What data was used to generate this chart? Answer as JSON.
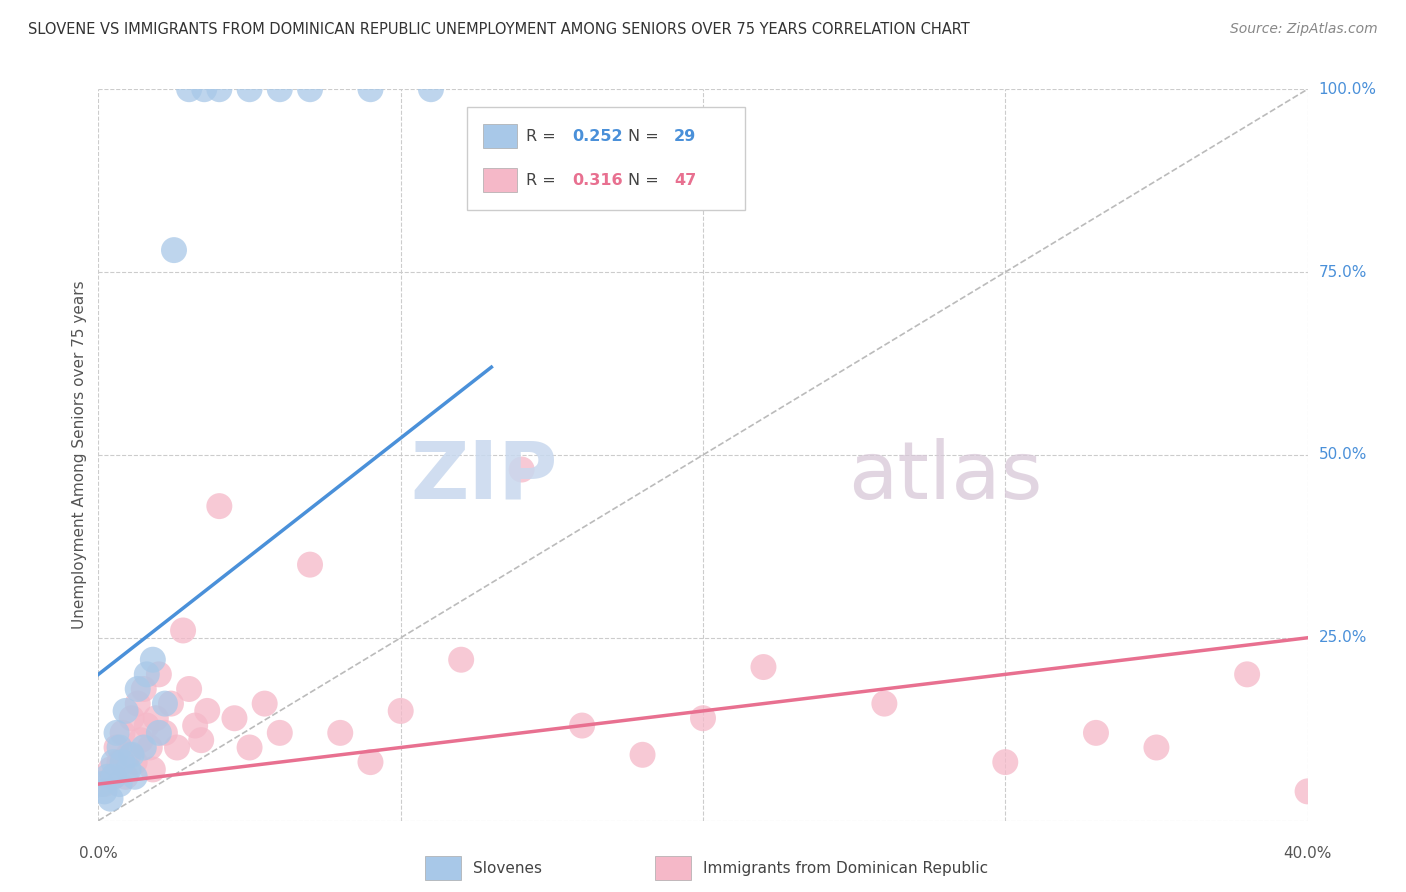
{
  "title": "SLOVENE VS IMMIGRANTS FROM DOMINICAN REPUBLIC UNEMPLOYMENT AMONG SENIORS OVER 75 YEARS CORRELATION CHART",
  "source": "Source: ZipAtlas.com",
  "ylabel": "Unemployment Among Seniors over 75 years",
  "xlim": [
    0.0,
    0.4
  ],
  "ylim": [
    0.0,
    1.0
  ],
  "yticks": [
    0.0,
    0.25,
    0.5,
    0.75,
    1.0
  ],
  "xticks": [
    0.0,
    0.1,
    0.2,
    0.3,
    0.4
  ],
  "blue_color": "#a8c8e8",
  "blue_line_color": "#4a90d9",
  "pink_color": "#f5b8c8",
  "pink_line_color": "#e87090",
  "diag_color": "#bbbbbb",
  "legend_R_blue": "0.252",
  "legend_N_blue": "29",
  "legend_R_pink": "0.316",
  "legend_N_pink": "47",
  "watermark_zip": "ZIP",
  "watermark_atlas": "atlas",
  "slovene_x": [
    0.001,
    0.002,
    0.003,
    0.004,
    0.005,
    0.005,
    0.006,
    0.007,
    0.007,
    0.008,
    0.009,
    0.01,
    0.011,
    0.012,
    0.013,
    0.015,
    0.016,
    0.018,
    0.02,
    0.022,
    0.025,
    0.03,
    0.035,
    0.04,
    0.05,
    0.06,
    0.07,
    0.09,
    0.11
  ],
  "slovene_y": [
    0.05,
    0.04,
    0.06,
    0.03,
    0.08,
    0.06,
    0.12,
    0.05,
    0.1,
    0.08,
    0.15,
    0.07,
    0.09,
    0.06,
    0.18,
    0.1,
    0.2,
    0.22,
    0.12,
    0.16,
    0.78,
    1.0,
    1.0,
    1.0,
    1.0,
    1.0,
    1.0,
    1.0,
    1.0
  ],
  "dr_x": [
    0.002,
    0.004,
    0.005,
    0.006,
    0.007,
    0.008,
    0.009,
    0.01,
    0.011,
    0.012,
    0.013,
    0.014,
    0.015,
    0.016,
    0.017,
    0.018,
    0.019,
    0.02,
    0.022,
    0.024,
    0.026,
    0.028,
    0.03,
    0.032,
    0.034,
    0.036,
    0.04,
    0.045,
    0.05,
    0.055,
    0.06,
    0.07,
    0.08,
    0.09,
    0.1,
    0.12,
    0.14,
    0.16,
    0.18,
    0.2,
    0.22,
    0.26,
    0.3,
    0.33,
    0.35,
    0.38,
    0.4
  ],
  "dr_y": [
    0.05,
    0.07,
    0.06,
    0.1,
    0.08,
    0.12,
    0.06,
    0.09,
    0.14,
    0.08,
    0.16,
    0.11,
    0.18,
    0.13,
    0.1,
    0.07,
    0.14,
    0.2,
    0.12,
    0.16,
    0.1,
    0.26,
    0.18,
    0.13,
    0.11,
    0.15,
    0.43,
    0.14,
    0.1,
    0.16,
    0.12,
    0.35,
    0.12,
    0.08,
    0.15,
    0.22,
    0.48,
    0.13,
    0.09,
    0.14,
    0.21,
    0.16,
    0.08,
    0.12,
    0.1,
    0.2,
    0.04
  ],
  "blue_regline_x": [
    0.0,
    0.13
  ],
  "blue_regline_y": [
    0.2,
    0.62
  ],
  "pink_regline_x": [
    0.0,
    0.4
  ],
  "pink_regline_y": [
    0.05,
    0.25
  ]
}
